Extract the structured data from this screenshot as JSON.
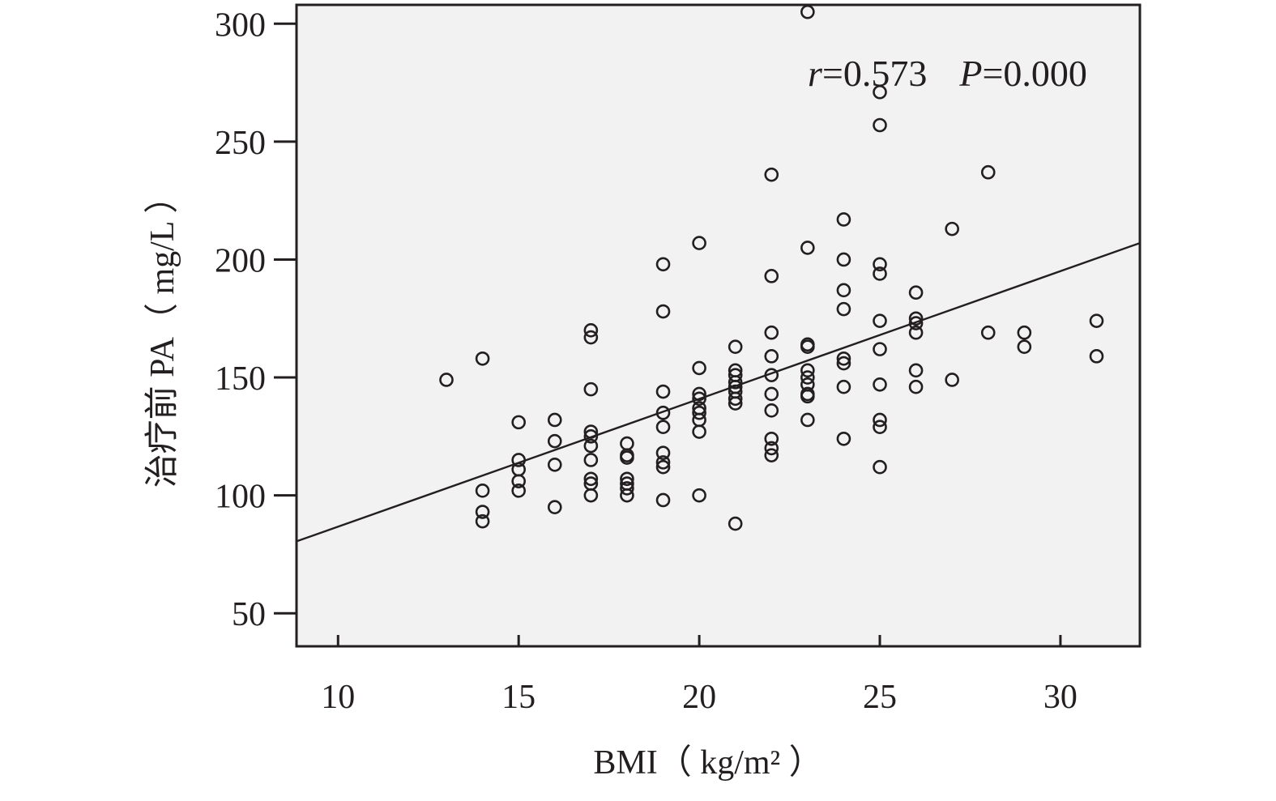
{
  "chart_data": {
    "type": "scatter",
    "xlabel": "BMI（ kg/m² ）",
    "ylabel": "治疗前 PA（ mg/L ）",
    "xlim": [
      8.85,
      32.2
    ],
    "ylim": [
      36,
      308
    ],
    "xticks": [
      10,
      15,
      20,
      25,
      30
    ],
    "yticks": [
      50,
      100,
      150,
      200,
      250,
      300
    ],
    "xtick_labels": [
      "10",
      "15",
      "20",
      "25",
      "30"
    ],
    "ytick_labels": [
      "50",
      "100",
      "150",
      "200",
      "250",
      "300"
    ],
    "annotation": {
      "r_symbol": "r",
      "r_text": "=0.573",
      "p_symbol": "P",
      "p_text": "=0.000"
    },
    "regression_line": {
      "x": [
        8.85,
        32.2
      ],
      "y": [
        80.5,
        207
      ]
    },
    "background": "#f2f2f2",
    "ink": "#231f20",
    "points": [
      [
        13,
        149
      ],
      [
        14,
        158
      ],
      [
        14,
        102
      ],
      [
        14,
        93
      ],
      [
        14,
        89
      ],
      [
        15,
        131
      ],
      [
        15,
        115
      ],
      [
        15,
        111
      ],
      [
        15,
        106
      ],
      [
        15,
        102
      ],
      [
        16,
        132
      ],
      [
        16,
        123
      ],
      [
        16,
        113
      ],
      [
        16,
        95
      ],
      [
        17,
        170
      ],
      [
        17,
        167
      ],
      [
        17,
        145
      ],
      [
        17,
        127
      ],
      [
        17,
        125
      ],
      [
        17,
        121
      ],
      [
        17,
        115
      ],
      [
        17,
        107
      ],
      [
        17,
        105
      ],
      [
        17,
        100
      ],
      [
        18,
        122
      ],
      [
        18,
        117
      ],
      [
        18,
        116
      ],
      [
        18,
        107
      ],
      [
        18,
        105
      ],
      [
        18,
        103
      ],
      [
        18,
        100
      ],
      [
        19,
        198
      ],
      [
        19,
        178
      ],
      [
        19,
        144
      ],
      [
        19,
        135
      ],
      [
        19,
        129
      ],
      [
        19,
        118
      ],
      [
        19,
        114
      ],
      [
        19,
        112
      ],
      [
        19,
        98
      ],
      [
        20,
        207
      ],
      [
        20,
        154
      ],
      [
        20,
        143
      ],
      [
        20,
        141
      ],
      [
        20,
        137
      ],
      [
        20,
        135
      ],
      [
        20,
        132
      ],
      [
        20,
        127
      ],
      [
        20,
        100
      ],
      [
        21,
        163
      ],
      [
        21,
        153
      ],
      [
        21,
        151
      ],
      [
        21,
        148
      ],
      [
        21,
        146
      ],
      [
        21,
        144
      ],
      [
        21,
        141
      ],
      [
        21,
        139
      ],
      [
        21,
        88
      ],
      [
        22,
        236
      ],
      [
        22,
        193
      ],
      [
        22,
        169
      ],
      [
        22,
        159
      ],
      [
        22,
        151
      ],
      [
        22,
        143
      ],
      [
        22,
        136
      ],
      [
        22,
        124
      ],
      [
        22,
        120
      ],
      [
        22,
        117
      ],
      [
        23,
        305
      ],
      [
        23,
        205
      ],
      [
        23,
        164
      ],
      [
        23,
        163
      ],
      [
        23,
        153
      ],
      [
        23,
        150
      ],
      [
        23,
        147
      ],
      [
        23,
        143
      ],
      [
        23,
        142
      ],
      [
        23,
        132
      ],
      [
        24,
        217
      ],
      [
        24,
        200
      ],
      [
        24,
        187
      ],
      [
        24,
        179
      ],
      [
        24,
        158
      ],
      [
        24,
        156
      ],
      [
        24,
        146
      ],
      [
        24,
        124
      ],
      [
        25,
        271
      ],
      [
        25,
        257
      ],
      [
        25,
        198
      ],
      [
        25,
        194
      ],
      [
        25,
        174
      ],
      [
        25,
        162
      ],
      [
        25,
        147
      ],
      [
        25,
        132
      ],
      [
        25,
        129
      ],
      [
        25,
        112
      ],
      [
        26,
        186
      ],
      [
        26,
        175
      ],
      [
        26,
        173
      ],
      [
        26,
        169
      ],
      [
        26,
        153
      ],
      [
        26,
        146
      ],
      [
        27,
        213
      ],
      [
        27,
        149
      ],
      [
        28,
        237
      ],
      [
        28,
        169
      ],
      [
        29,
        169
      ],
      [
        29,
        163
      ],
      [
        31,
        174
      ],
      [
        31,
        159
      ]
    ]
  }
}
